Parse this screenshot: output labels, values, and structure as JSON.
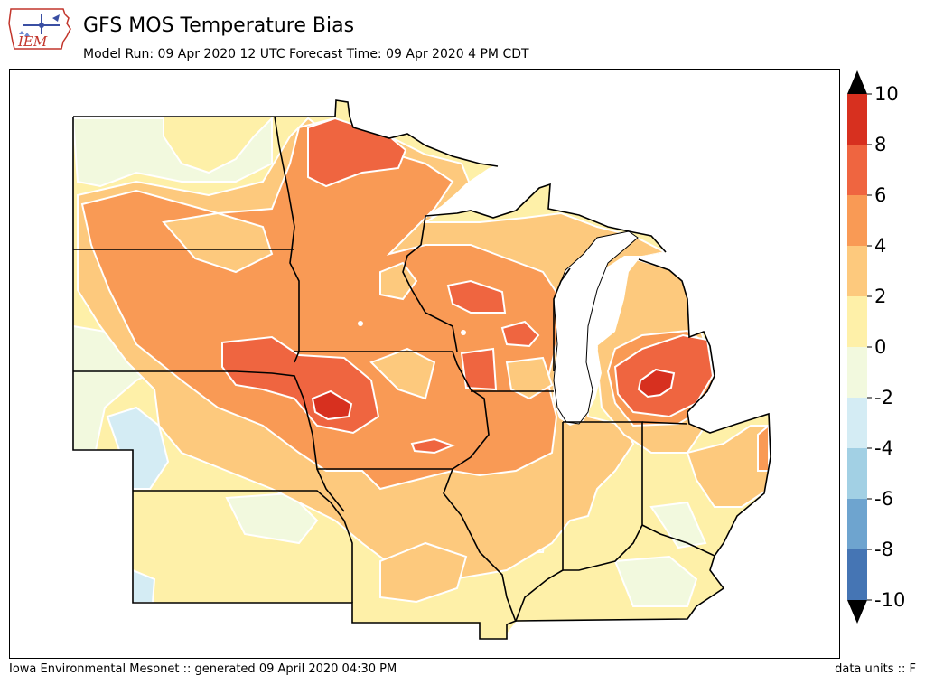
{
  "header": {
    "title": "GFS MOS Temperature Bias",
    "subtitle": "Model Run: 09 Apr 2020 12 UTC Forecast Time: 09 Apr 2020 4 PM CDT"
  },
  "logo": {
    "text": "IEM",
    "icon": "iem-iowa-weather-logo"
  },
  "footer": {
    "left": "Iowa Environmental Mesonet :: generated 09 April 2020 04:30 PM",
    "right": "data units :: F"
  },
  "colorbar": {
    "ticks": [
      "10",
      "8",
      "6",
      "4",
      "2",
      "0",
      "-2",
      "-4",
      "-6",
      "-8",
      "-10"
    ],
    "bins": [
      {
        "range": [
          8,
          10
        ],
        "color": "#d7301f"
      },
      {
        "range": [
          6,
          8
        ],
        "color": "#ef6540"
      },
      {
        "range": [
          4,
          6
        ],
        "color": "#f99a55"
      },
      {
        "range": [
          2,
          4
        ],
        "color": "#fdc97d"
      },
      {
        "range": [
          0,
          2
        ],
        "color": "#fef0a8"
      },
      {
        "range": [
          -2,
          0
        ],
        "color": "#f2f9de"
      },
      {
        "range": [
          -4,
          -2
        ],
        "color": "#d4ecf4"
      },
      {
        "range": [
          -6,
          -4
        ],
        "color": "#a2d0e4"
      },
      {
        "range": [
          -8,
          -6
        ],
        "color": "#6ea4cf"
      },
      {
        "range": [
          -10,
          -8
        ],
        "color": "#4575b4"
      }
    ],
    "over_color": "#000000",
    "under_color": "#000000"
  },
  "map": {
    "land_colors": {
      "bias_0_2": "#fef0a8",
      "bias_2_4": "#fdc97d",
      "bias_4_6": "#f99a55",
      "bias_6_8": "#ef6540",
      "bias_8_10": "#d7301f",
      "bias_neg2_0": "#f2f9de",
      "bias_neg4_neg2": "#d4ecf4"
    },
    "water_color": "#ffffff"
  }
}
